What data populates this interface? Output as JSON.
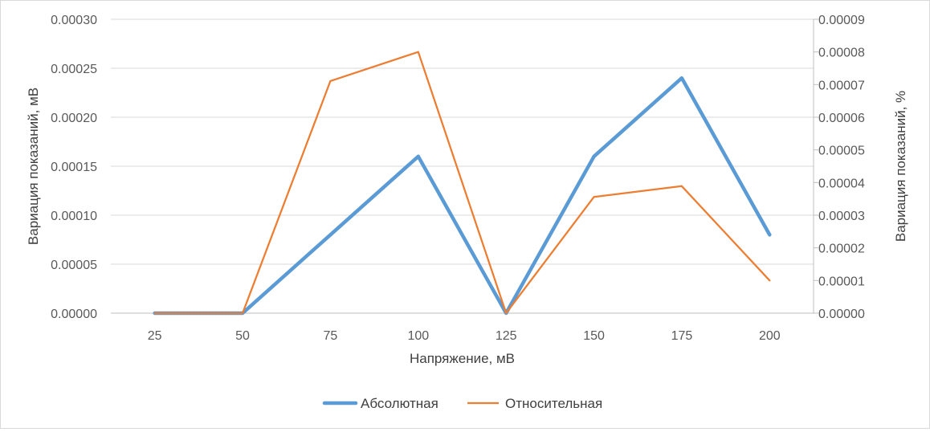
{
  "chart_data": {
    "type": "line",
    "categories": [
      "25",
      "50",
      "75",
      "100",
      "125",
      "150",
      "175",
      "200"
    ],
    "xlabel": "Напряжение, мВ",
    "ylabel_left": "Вариация показаний, мВ",
    "ylabel_right": "Вариация показаний, %",
    "ylim_left": [
      0,
      0.0003
    ],
    "ylim_right": [
      0,
      9e-05
    ],
    "yticks_left": [
      "0.00000",
      "0.00005",
      "0.00010",
      "0.00015",
      "0.00020",
      "0.00025",
      "0.00030"
    ],
    "yticks_right": [
      "0.00000",
      "0.00001",
      "0.00002",
      "0.00003",
      "0.00004",
      "0.00005",
      "0.00006",
      "0.00007",
      "0.00008",
      "0.00009"
    ],
    "grid": "horizontal",
    "legend": "bottom",
    "series": [
      {
        "name": "Абсолютная",
        "axis": "left",
        "color": "#5b9bd5",
        "values": [
          0.0,
          0.0,
          8e-05,
          0.00016,
          0.0,
          0.00016,
          0.00024,
          8e-05
        ]
      },
      {
        "name": "Относительная",
        "axis": "right",
        "color": "#ed7d31",
        "values": [
          0.0,
          0.0,
          7.11e-05,
          8e-05,
          0.0,
          3.56e-05,
          3.89e-05,
          1e-05
        ]
      }
    ]
  }
}
